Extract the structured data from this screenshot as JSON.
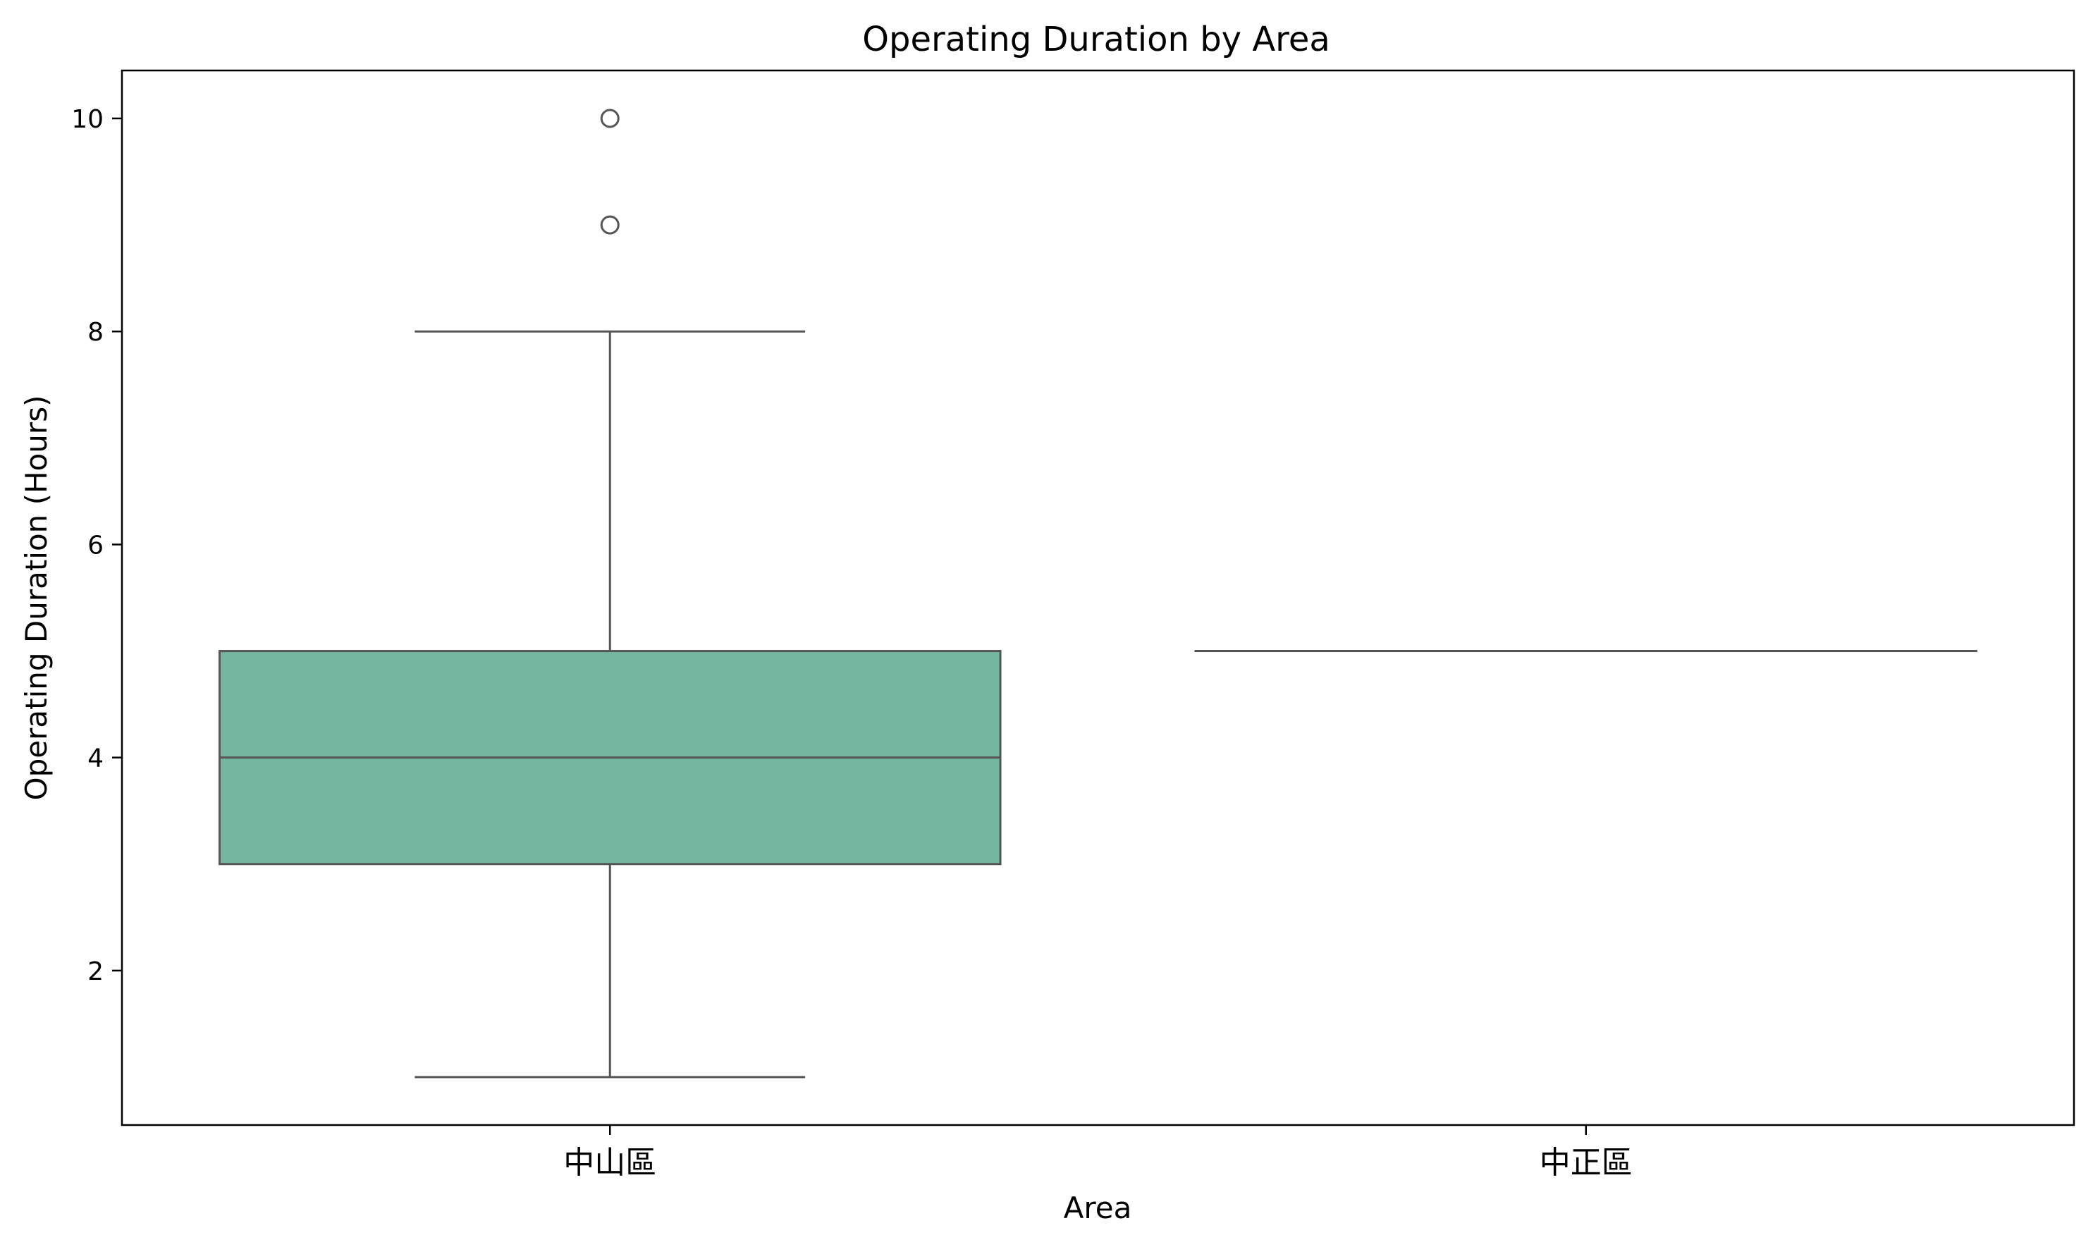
{
  "chart_data": {
    "type": "box",
    "title": "Operating Duration by Area",
    "xlabel": "Area",
    "ylabel": "Operating Duration (Hours)",
    "categories": [
      "中山區",
      "中正區"
    ],
    "ylim": [
      0.55,
      10.45
    ],
    "yticks": [
      2,
      4,
      6,
      8,
      10
    ],
    "grid": false,
    "legend": "none",
    "boxes": [
      {
        "category": "中山區",
        "whisker_low": 1,
        "q1": 3,
        "median": 4,
        "q3": 5,
        "whisker_high": 8,
        "outliers": [
          9,
          10
        ],
        "color": "#75b6a1"
      },
      {
        "category": "中正區",
        "whisker_low": 5,
        "q1": 5,
        "median": 5,
        "q3": 5,
        "whisker_high": 5,
        "outliers": [],
        "color": "#f4a582"
      }
    ],
    "line_color": "#555555"
  }
}
